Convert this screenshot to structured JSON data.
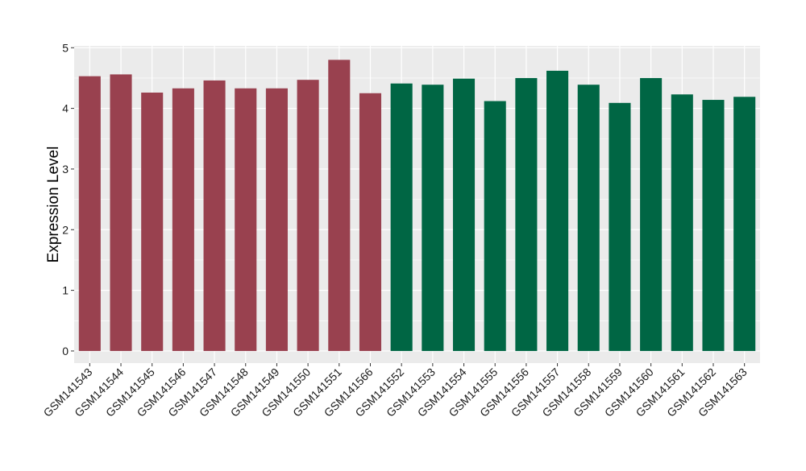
{
  "chart_data": {
    "type": "bar",
    "title": "",
    "xlabel": "",
    "ylabel": "Expression Level",
    "ylim": [
      -0.2,
      5.03
    ],
    "yticks": [
      0,
      1,
      2,
      3,
      4,
      5
    ],
    "grid": true,
    "legend": "none",
    "colors": {
      "group1": "#99414f",
      "group2": "#006644",
      "panel": "#ebebeb",
      "grid": "#ffffff",
      "text": "#1a1a1a"
    },
    "categories": [
      "GSM141543",
      "GSM141544",
      "GSM141545",
      "GSM141546",
      "GSM141547",
      "GSM141548",
      "GSM141549",
      "GSM141550",
      "GSM141551",
      "GSM141566",
      "GSM141552",
      "GSM141553",
      "GSM141554",
      "GSM141555",
      "GSM141556",
      "GSM141557",
      "GSM141558",
      "GSM141559",
      "GSM141560",
      "GSM141561",
      "GSM141562",
      "GSM141563"
    ],
    "values": [
      4.53,
      4.56,
      4.26,
      4.33,
      4.46,
      4.33,
      4.33,
      4.47,
      4.8,
      4.25,
      4.41,
      4.39,
      4.49,
      4.12,
      4.5,
      4.62,
      4.39,
      4.09,
      4.5,
      4.23,
      4.14,
      4.19
    ],
    "groups": [
      "group1",
      "group1",
      "group1",
      "group1",
      "group1",
      "group1",
      "group1",
      "group1",
      "group1",
      "group1",
      "group2",
      "group2",
      "group2",
      "group2",
      "group2",
      "group2",
      "group2",
      "group2",
      "group2",
      "group2",
      "group2",
      "group2"
    ]
  }
}
